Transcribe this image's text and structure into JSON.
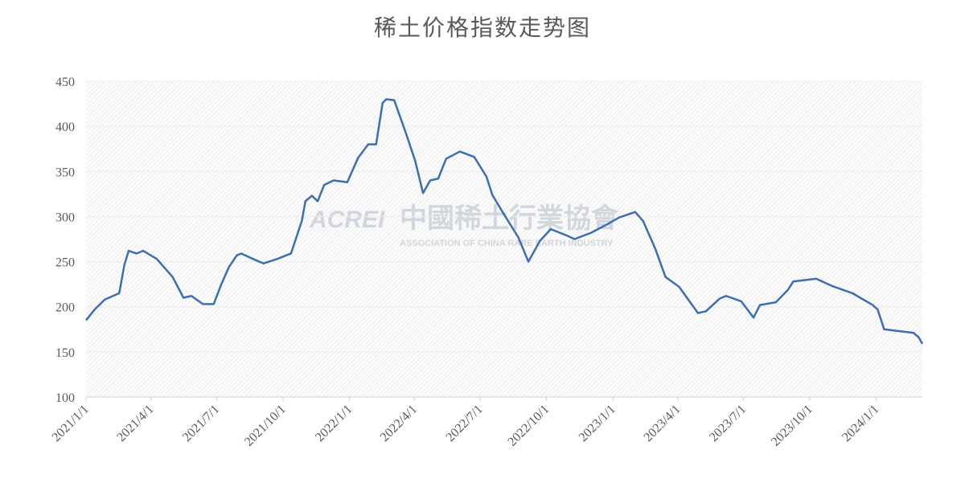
{
  "chart_data": {
    "type": "line",
    "title": "稀土价格指数走势图",
    "watermark": [
      "ACREI",
      "中國稀土行業協會",
      "ASSOCIATION OF CHINA RARE EARTH INDUSTRY"
    ],
    "x": [
      "2021/1/1",
      "2021/1/13",
      "2021/1/27",
      "2021/2/16",
      "2021/2/23",
      "2021/3/1",
      "2021/3/12",
      "2021/3/21",
      "2021/4/9",
      "2021/5/1",
      "2021/5/16",
      "2021/5/27",
      "2021/6/12",
      "2021/6/27",
      "2021/7/7",
      "2021/7/18",
      "2021/7/29",
      "2021/8/4",
      "2021/8/26",
      "2021/9/4",
      "2021/9/23",
      "2021/10/12",
      "2021/10/27",
      "2021/11/1",
      "2021/11/10",
      "2021/11/18",
      "2021/11/27",
      "2021/12/10",
      "2021/12/29",
      "2022/1/13",
      "2022/1/27",
      "2022/2/7",
      "2022/2/16",
      "2022/2/21",
      "2022/3/4",
      "2022/3/20",
      "2022/4/2",
      "2022/4/13",
      "2022/4/23",
      "2022/5/4",
      "2022/5/15",
      "2022/6/3",
      "2022/6/23",
      "2022/7/10",
      "2022/7/18",
      "2022/8/2",
      "2022/8/23",
      "2022/9/6",
      "2022/9/22",
      "2022/10/7",
      "2022/10/29",
      "2022/11/9",
      "2022/12/2",
      "2022/12/21",
      "2023/1/10",
      "2023/2/1",
      "2023/2/12",
      "2023/3/1",
      "2023/3/15",
      "2023/4/3",
      "2023/4/20",
      "2023/4/29",
      "2023/5/10",
      "2023/5/29",
      "2023/6/7",
      "2023/6/28",
      "2023/7/15",
      "2023/7/24",
      "2023/8/15",
      "2023/9/1",
      "2023/9/8",
      "2023/10/10",
      "2023/11/1",
      "2023/11/29",
      "2023/12/27",
      "2024/1/3",
      "2024/1/12",
      "2024/2/22",
      "2024/2/29",
      "2024/3/5"
    ],
    "series": [
      {
        "name": "稀土价格指数",
        "color": "#3c6fb0",
        "values": [
          185,
          197,
          208,
          215,
          246,
          262,
          259,
          262,
          253,
          233,
          210,
          212,
          203,
          203,
          224,
          244,
          257,
          259,
          251,
          248,
          253,
          259,
          295,
          317,
          323,
          317,
          335,
          340,
          338,
          365,
          380,
          380,
          426,
          430,
          429,
          393,
          362,
          326,
          340,
          342,
          364,
          372,
          366,
          344,
          324,
          304,
          277,
          250,
          273,
          286,
          279,
          275,
          282,
          290,
          299,
          305,
          295,
          264,
          233,
          222,
          203,
          193,
          195,
          209,
          212,
          206,
          188,
          202,
          205,
          219,
          228,
          231,
          223,
          215,
          202,
          197,
          175,
          171,
          166,
          159
        ]
      }
    ],
    "xlim": [
      "2021/1/1",
      "2024/3/5"
    ],
    "xticks": [
      "2021/1/1",
      "2021/4/1",
      "2021/7/1",
      "2021/10/1",
      "2022/1/1",
      "2022/4/1",
      "2022/7/1",
      "2022/10/1",
      "2023/1/1",
      "2023/4/1",
      "2023/7/1",
      "2023/10/1",
      "2024/1/1"
    ],
    "ylim": [
      100,
      450
    ],
    "yticks": [
      100,
      150,
      200,
      250,
      300,
      350,
      400,
      450
    ],
    "grid": true
  }
}
